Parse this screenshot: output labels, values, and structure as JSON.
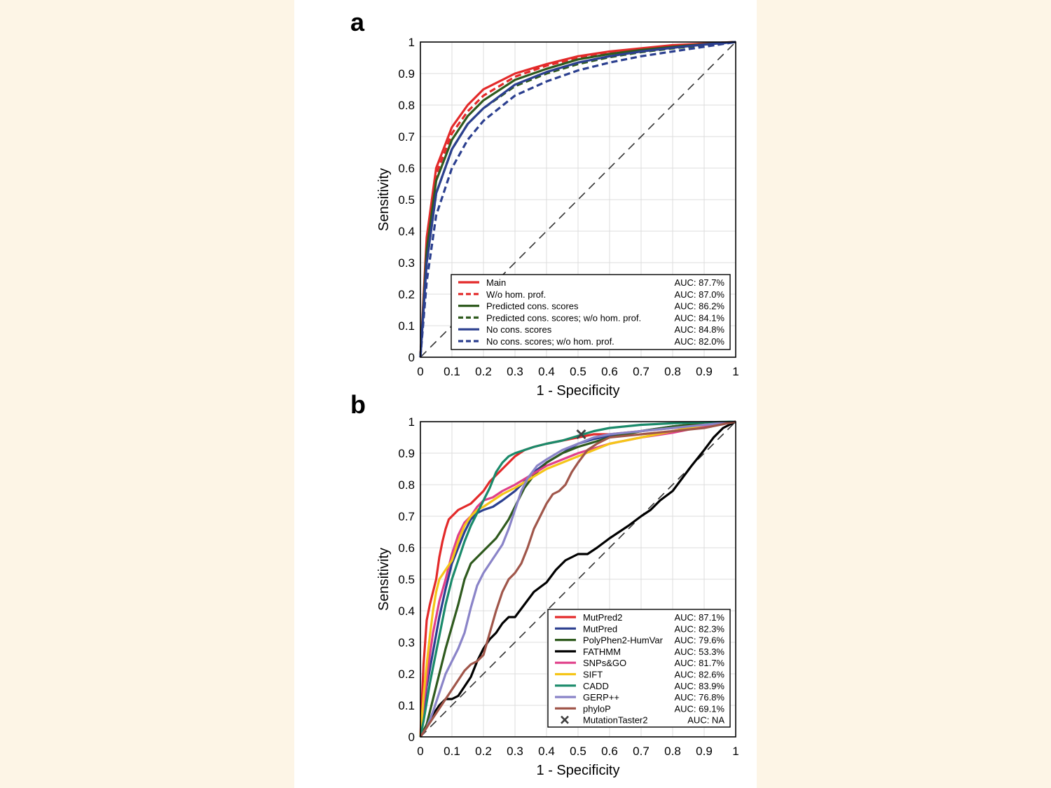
{
  "panel_labels": [
    "a",
    "b"
  ],
  "chart_data": [
    {
      "type": "line",
      "xlabel": "1 - Specificity",
      "ylabel": "Sensitivity",
      "xlim": [
        0,
        1
      ],
      "ylim": [
        0,
        1
      ],
      "x_ticks": [
        "0",
        "0.1",
        "0.2",
        "0.3",
        "0.4",
        "0.5",
        "0.6",
        "0.7",
        "0.8",
        "0.9",
        "1"
      ],
      "y_ticks": [
        "0",
        "0.1",
        "0.2",
        "0.3",
        "0.4",
        "0.5",
        "0.6",
        "0.7",
        "0.8",
        "0.9",
        "1"
      ],
      "grid": true,
      "legend_position": "bottom-right",
      "diagonal_reference": true,
      "series": [
        {
          "name": "Main",
          "auc": "AUC: 87.7%",
          "color": "#e32a2a",
          "dashed": false,
          "x": [
            0,
            0.02,
            0.05,
            0.1,
            0.15,
            0.2,
            0.3,
            0.4,
            0.5,
            0.6,
            0.7,
            0.8,
            0.9,
            1
          ],
          "y": [
            0,
            0.38,
            0.6,
            0.73,
            0.8,
            0.85,
            0.9,
            0.93,
            0.955,
            0.97,
            0.98,
            0.99,
            0.995,
            1
          ]
        },
        {
          "name": "W/o hom. prof.",
          "auc": "AUC: 87.0%",
          "color": "#e32a2a",
          "dashed": true,
          "x": [
            0,
            0.02,
            0.05,
            0.1,
            0.15,
            0.2,
            0.3,
            0.4,
            0.5,
            0.6,
            0.7,
            0.8,
            0.9,
            1
          ],
          "y": [
            0,
            0.36,
            0.58,
            0.71,
            0.78,
            0.83,
            0.89,
            0.925,
            0.95,
            0.965,
            0.978,
            0.988,
            0.995,
            1
          ]
        },
        {
          "name": "Predicted cons. scores",
          "auc": "AUC: 86.2%",
          "color": "#2f5a1e",
          "dashed": false,
          "x": [
            0,
            0.02,
            0.05,
            0.1,
            0.15,
            0.2,
            0.3,
            0.4,
            0.5,
            0.6,
            0.7,
            0.8,
            0.9,
            1
          ],
          "y": [
            0,
            0.34,
            0.56,
            0.69,
            0.765,
            0.815,
            0.88,
            0.915,
            0.945,
            0.962,
            0.975,
            0.985,
            0.993,
            1
          ]
        },
        {
          "name": "Predicted cons. scores; w/o hom. prof.",
          "auc": "AUC: 84.1%",
          "color": "#2f5a1e",
          "dashed": true,
          "x": [
            0,
            0.02,
            0.05,
            0.1,
            0.15,
            0.2,
            0.3,
            0.4,
            0.5,
            0.6,
            0.7,
            0.8,
            0.9,
            1
          ],
          "y": [
            0,
            0.3,
            0.52,
            0.66,
            0.74,
            0.79,
            0.86,
            0.9,
            0.93,
            0.952,
            0.968,
            0.98,
            0.99,
            1
          ]
        },
        {
          "name": "No cons. scores",
          "auc": "AUC: 84.8%",
          "color": "#2b3f8f",
          "dashed": false,
          "x": [
            0,
            0.02,
            0.05,
            0.1,
            0.15,
            0.2,
            0.3,
            0.4,
            0.5,
            0.6,
            0.7,
            0.8,
            0.9,
            1
          ],
          "y": [
            0,
            0.3,
            0.52,
            0.66,
            0.74,
            0.79,
            0.865,
            0.905,
            0.935,
            0.955,
            0.97,
            0.982,
            0.992,
            1
          ]
        },
        {
          "name": "No cons. scores; w/o hom. prof.",
          "auc": "AUC: 82.0%",
          "color": "#2b3f8f",
          "dashed": true,
          "x": [
            0,
            0.02,
            0.05,
            0.1,
            0.15,
            0.2,
            0.3,
            0.4,
            0.5,
            0.6,
            0.7,
            0.8,
            0.9,
            1
          ],
          "y": [
            0,
            0.24,
            0.45,
            0.6,
            0.69,
            0.75,
            0.83,
            0.875,
            0.91,
            0.935,
            0.955,
            0.97,
            0.985,
            1
          ]
        }
      ]
    },
    {
      "type": "line",
      "xlabel": "1 - Specificity",
      "ylabel": "Sensitivity",
      "xlim": [
        0,
        1
      ],
      "ylim": [
        0,
        1
      ],
      "x_ticks": [
        "0",
        "0.1",
        "0.2",
        "0.3",
        "0.4",
        "0.5",
        "0.6",
        "0.7",
        "0.8",
        "0.9",
        "1"
      ],
      "y_ticks": [
        "0",
        "0.1",
        "0.2",
        "0.3",
        "0.4",
        "0.5",
        "0.6",
        "0.7",
        "0.8",
        "0.9",
        "1"
      ],
      "grid": true,
      "legend_position": "bottom-right",
      "diagonal_reference": true,
      "series": [
        {
          "name": "MutPred2",
          "auc": "AUC: 87.1%",
          "color": "#e32a2a",
          "dashed": false,
          "x": [
            0,
            0.005,
            0.01,
            0.015,
            0.02,
            0.03,
            0.04,
            0.05,
            0.06,
            0.07,
            0.08,
            0.09,
            0.1,
            0.12,
            0.14,
            0.16,
            0.18,
            0.2,
            0.22,
            0.25,
            0.28,
            0.3,
            0.33,
            0.36,
            0.4,
            0.45,
            0.5,
            0.55,
            0.6,
            0.7,
            0.8,
            0.9,
            1
          ],
          "y": [
            0,
            0.12,
            0.23,
            0.3,
            0.37,
            0.42,
            0.46,
            0.5,
            0.57,
            0.62,
            0.66,
            0.69,
            0.7,
            0.72,
            0.73,
            0.74,
            0.76,
            0.78,
            0.81,
            0.84,
            0.87,
            0.89,
            0.91,
            0.92,
            0.93,
            0.94,
            0.95,
            0.96,
            0.96,
            0.97,
            0.98,
            0.99,
            1
          ]
        },
        {
          "name": "MutPred",
          "auc": "AUC: 82.3%",
          "color": "#2b3f8f",
          "dashed": false,
          "x": [
            0,
            0.01,
            0.02,
            0.04,
            0.06,
            0.08,
            0.1,
            0.12,
            0.14,
            0.16,
            0.18,
            0.2,
            0.23,
            0.26,
            0.3,
            0.33,
            0.36,
            0.4,
            0.45,
            0.5,
            0.55,
            0.6,
            0.7,
            0.8,
            0.9,
            1
          ],
          "y": [
            0,
            0.08,
            0.16,
            0.27,
            0.38,
            0.47,
            0.55,
            0.6,
            0.65,
            0.69,
            0.71,
            0.72,
            0.73,
            0.75,
            0.78,
            0.81,
            0.84,
            0.87,
            0.9,
            0.93,
            0.945,
            0.955,
            0.97,
            0.985,
            0.995,
            1
          ]
        },
        {
          "name": "PolyPhen2-HumVar",
          "auc": "AUC: 79.6%",
          "color": "#2f5a1e",
          "dashed": false,
          "x": [
            0,
            0.02,
            0.04,
            0.06,
            0.08,
            0.1,
            0.12,
            0.14,
            0.16,
            0.18,
            0.2,
            0.22,
            0.24,
            0.26,
            0.28,
            0.3,
            0.33,
            0.36,
            0.4,
            0.45,
            0.5,
            0.6,
            0.7,
            0.8,
            0.9,
            1
          ],
          "y": [
            0,
            0.04,
            0.12,
            0.2,
            0.28,
            0.35,
            0.42,
            0.5,
            0.55,
            0.57,
            0.59,
            0.61,
            0.63,
            0.66,
            0.69,
            0.73,
            0.79,
            0.83,
            0.87,
            0.9,
            0.92,
            0.95,
            0.97,
            0.985,
            0.995,
            1
          ]
        },
        {
          "name": "FATHMM",
          "auc": "AUC: 53.3%",
          "color": "#000000",
          "dashed": false,
          "x": [
            0,
            0.02,
            0.04,
            0.06,
            0.08,
            0.1,
            0.12,
            0.14,
            0.16,
            0.18,
            0.2,
            0.22,
            0.24,
            0.26,
            0.28,
            0.3,
            0.33,
            0.36,
            0.4,
            0.43,
            0.46,
            0.5,
            0.53,
            0.56,
            0.6,
            0.63,
            0.66,
            0.7,
            0.73,
            0.76,
            0.8,
            0.83,
            0.86,
            0.9,
            0.93,
            0.96,
            1
          ],
          "y": [
            0,
            0.03,
            0.07,
            0.1,
            0.12,
            0.12,
            0.13,
            0.16,
            0.19,
            0.24,
            0.28,
            0.31,
            0.33,
            0.36,
            0.38,
            0.38,
            0.42,
            0.46,
            0.49,
            0.53,
            0.56,
            0.58,
            0.58,
            0.6,
            0.63,
            0.65,
            0.67,
            0.7,
            0.72,
            0.75,
            0.78,
            0.82,
            0.86,
            0.91,
            0.95,
            0.98,
            1
          ]
        },
        {
          "name": "SNPs&GO",
          "auc": "AUC: 81.7%",
          "color": "#e0408a",
          "dashed": false,
          "x": [
            0,
            0.01,
            0.02,
            0.03,
            0.04,
            0.05,
            0.06,
            0.08,
            0.1,
            0.12,
            0.14,
            0.16,
            0.18,
            0.2,
            0.23,
            0.26,
            0.3,
            0.35,
            0.4,
            0.45,
            0.5,
            0.6,
            0.7,
            0.8,
            0.9,
            1
          ],
          "y": [
            0,
            0.1,
            0.18,
            0.26,
            0.33,
            0.38,
            0.43,
            0.5,
            0.58,
            0.64,
            0.68,
            0.7,
            0.73,
            0.75,
            0.76,
            0.78,
            0.8,
            0.83,
            0.86,
            0.88,
            0.9,
            0.93,
            0.95,
            0.965,
            0.985,
            1
          ]
        },
        {
          "name": "SIFT",
          "auc": "AUC: 82.6%",
          "color": "#f5c518",
          "dashed": false,
          "x": [
            0,
            0.01,
            0.02,
            0.03,
            0.04,
            0.05,
            0.06,
            0.08,
            0.1,
            0.12,
            0.14,
            0.16,
            0.18,
            0.2,
            0.23,
            0.26,
            0.3,
            0.35,
            0.4,
            0.45,
            0.5,
            0.55,
            0.6,
            0.7,
            0.8,
            0.9,
            1
          ],
          "y": [
            0,
            0.13,
            0.23,
            0.32,
            0.4,
            0.46,
            0.5,
            0.53,
            0.56,
            0.62,
            0.67,
            0.7,
            0.72,
            0.73,
            0.75,
            0.77,
            0.79,
            0.82,
            0.85,
            0.87,
            0.89,
            0.91,
            0.93,
            0.95,
            0.97,
            0.99,
            1
          ]
        },
        {
          "name": "CADD",
          "auc": "AUC: 83.9%",
          "color": "#1a8a6a",
          "dashed": false,
          "x": [
            0,
            0.01,
            0.02,
            0.03,
            0.04,
            0.05,
            0.06,
            0.07,
            0.08,
            0.1,
            0.12,
            0.14,
            0.16,
            0.18,
            0.2,
            0.22,
            0.24,
            0.26,
            0.28,
            0.3,
            0.33,
            0.36,
            0.4,
            0.45,
            0.5,
            0.55,
            0.6,
            0.7,
            0.8,
            0.9,
            1
          ],
          "y": [
            0,
            0.05,
            0.11,
            0.17,
            0.22,
            0.27,
            0.32,
            0.37,
            0.42,
            0.5,
            0.56,
            0.62,
            0.67,
            0.71,
            0.75,
            0.79,
            0.84,
            0.87,
            0.89,
            0.9,
            0.91,
            0.92,
            0.93,
            0.94,
            0.955,
            0.97,
            0.98,
            0.99,
            0.995,
            0.998,
            1
          ]
        },
        {
          "name": "GERP++",
          "auc": "AUC: 76.8%",
          "color": "#8a84c8",
          "dashed": false,
          "x": [
            0,
            0.02,
            0.04,
            0.06,
            0.08,
            0.1,
            0.12,
            0.14,
            0.16,
            0.18,
            0.2,
            0.22,
            0.24,
            0.26,
            0.28,
            0.3,
            0.32,
            0.34,
            0.37,
            0.4,
            0.45,
            0.5,
            0.55,
            0.6,
            0.7,
            0.8,
            0.9,
            1
          ],
          "y": [
            0,
            0.03,
            0.08,
            0.14,
            0.2,
            0.24,
            0.28,
            0.33,
            0.41,
            0.48,
            0.52,
            0.55,
            0.58,
            0.61,
            0.66,
            0.72,
            0.78,
            0.82,
            0.86,
            0.88,
            0.91,
            0.93,
            0.95,
            0.96,
            0.97,
            0.98,
            0.99,
            1
          ]
        },
        {
          "name": "phyloP",
          "auc": "AUC: 69.1%",
          "color": "#a0564a",
          "dashed": false,
          "x": [
            0,
            0.02,
            0.04,
            0.06,
            0.08,
            0.1,
            0.12,
            0.14,
            0.16,
            0.18,
            0.2,
            0.22,
            0.24,
            0.26,
            0.28,
            0.3,
            0.32,
            0.34,
            0.36,
            0.38,
            0.4,
            0.42,
            0.44,
            0.46,
            0.48,
            0.5,
            0.53,
            0.56,
            0.6,
            0.7,
            0.8,
            0.9,
            1
          ],
          "y": [
            0,
            0.03,
            0.06,
            0.09,
            0.12,
            0.15,
            0.18,
            0.21,
            0.23,
            0.24,
            0.26,
            0.33,
            0.4,
            0.46,
            0.5,
            0.52,
            0.55,
            0.6,
            0.66,
            0.7,
            0.74,
            0.77,
            0.78,
            0.8,
            0.84,
            0.87,
            0.91,
            0.93,
            0.95,
            0.96,
            0.97,
            0.98,
            1
          ]
        },
        {
          "name": "MutationTaster2",
          "auc": "AUC: NA",
          "color": "#404040",
          "marker": "x",
          "x": [
            0.51
          ],
          "y": [
            0.96
          ]
        }
      ]
    }
  ]
}
